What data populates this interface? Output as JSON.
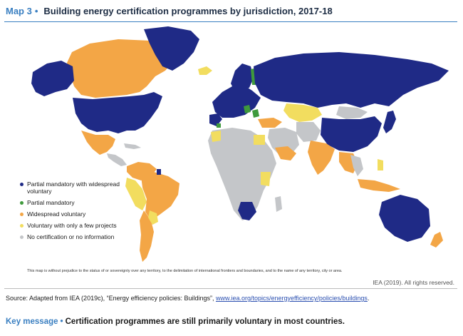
{
  "header": {
    "map_number": "Map 3",
    "title": "Building energy certification programmes by jurisdiction, 2017-18"
  },
  "legend": [
    {
      "label": "Partial mandatory with widespread voluntary",
      "color": "#1f2a86"
    },
    {
      "label": "Partial mandatory",
      "color": "#3f9a3c"
    },
    {
      "label": "Widespread voluntary",
      "color": "#f3a646"
    },
    {
      "label": "Voluntary with only a few projects",
      "color": "#f2dd5f"
    },
    {
      "label": "No certification or no information",
      "color": "#c4c6c9"
    }
  ],
  "disclaimer": "This map is without prejudice to the status of or sovereignty over any territory, to the delimitation of international frontiers and boundaries, and to the name of any territory, city or area.",
  "credit": "IEA (2019). All rights reserved.",
  "source": {
    "prefix": "Source: Adapted from IEA (2019c), “Energy efficiency policies: Buildings”, ",
    "link": "www.iea.org/topics/energyefficiency/policies/buildings",
    "suffix": "."
  },
  "key_message": {
    "label": "Key message",
    "text": "Certification programmes are still primarily voluntary in most countries."
  },
  "colors": {
    "accent": "#3a7fc1",
    "partial_mandatory_widespread": "#1f2a86",
    "partial_mandatory": "#3f9a3c",
    "widespread_voluntary": "#f3a646",
    "voluntary_few": "#f2dd5f",
    "no_certification": "#c4c6c9"
  }
}
